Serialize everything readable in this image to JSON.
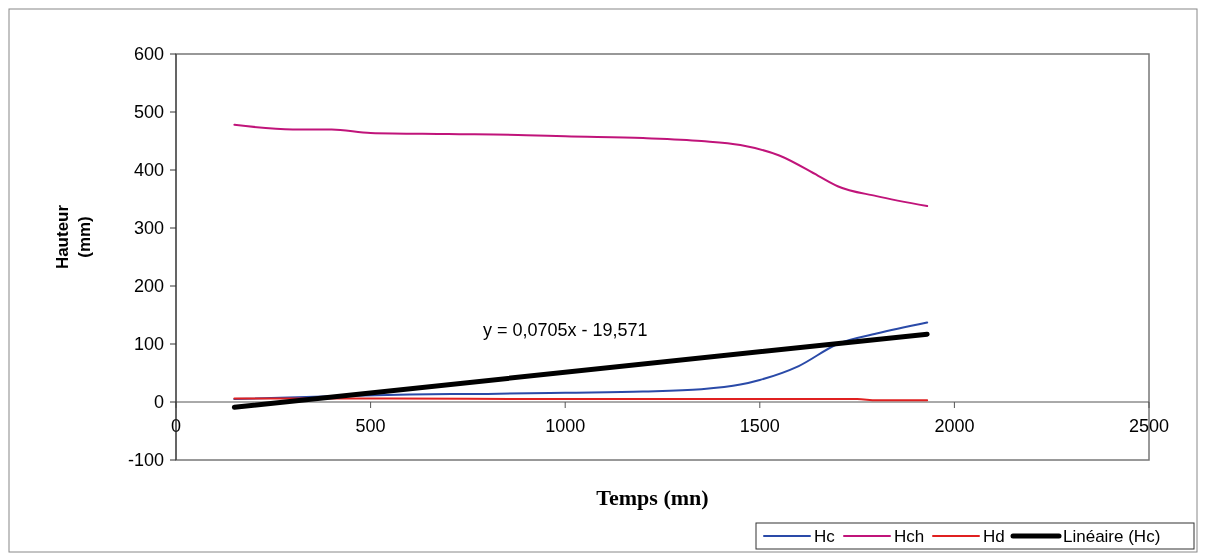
{
  "chart_data": {
    "type": "line",
    "xlabel": "Temps (mn)",
    "ylabel": "Hauteur (mm)",
    "xlim": [
      0,
      2500
    ],
    "xticks": [
      0,
      500,
      1000,
      1500,
      2000,
      2500
    ],
    "ylim": [
      -100,
      600
    ],
    "yticks": [
      -100,
      0,
      100,
      200,
      300,
      400,
      500,
      600
    ],
    "grid": false,
    "legend": "bottom right",
    "marker": "none",
    "line_style": "solid",
    "annotations": [
      "y = 0,0705x - 19,571"
    ],
    "series": [
      {
        "name": "Hc",
        "color": "#2a4aa8",
        "x": [
          150,
          400,
          600,
          800,
          1000,
          1200,
          1350,
          1450,
          1500,
          1600,
          1700,
          1800,
          1930
        ],
        "values": [
          5,
          10,
          13,
          14,
          16,
          18,
          22,
          30,
          38,
          62,
          100,
          118,
          137
        ]
      },
      {
        "name": "Hch",
        "color": "#c0147a",
        "x": [
          150,
          300,
          400,
          500,
          700,
          900,
          1000,
          1200,
          1350,
          1450,
          1550,
          1650,
          1700,
          1800,
          1930
        ],
        "values": [
          478,
          470,
          470,
          464,
          462,
          460,
          458,
          455,
          450,
          443,
          425,
          390,
          372,
          355,
          338
        ]
      },
      {
        "name": "Hd",
        "color": "#e02020",
        "x": [
          150,
          500,
          1000,
          1500,
          1750,
          1800,
          1930
        ],
        "values": [
          6,
          6,
          5,
          5,
          5,
          3,
          3
        ]
      },
      {
        "name": "Linéaire (Hc)",
        "color": "#000000",
        "type": "line",
        "x": [
          150,
          1930
        ],
        "values": [
          -9,
          117
        ]
      }
    ]
  }
}
